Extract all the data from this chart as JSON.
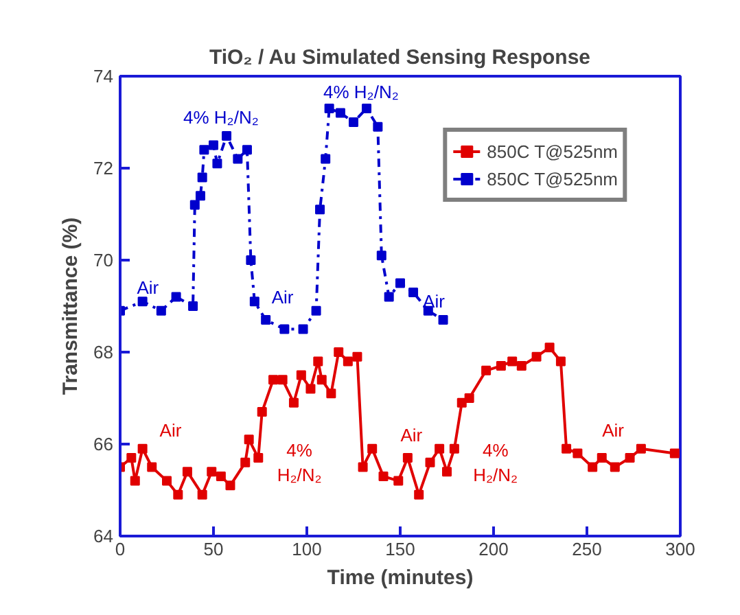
{
  "chart_data": {
    "type": "line",
    "title": "TiO₂ / Au Simulated Sensing Response",
    "xlabel": "Time (minutes)",
    "ylabel": "Transmittance (%)",
    "xlim": [
      0,
      300
    ],
    "xticks": [
      0,
      50,
      100,
      150,
      200,
      250,
      300
    ],
    "ylim": [
      64,
      74
    ],
    "yticks": [
      64,
      66,
      68,
      70,
      72,
      74
    ],
    "grid": false,
    "legend": "top right",
    "marker": "square",
    "series": [
      {
        "name": "850C T@525nm",
        "color": "#e00000",
        "line_style": "solid",
        "x": [
          0,
          6,
          8,
          12,
          17,
          25,
          31,
          36,
          44,
          49,
          54,
          59,
          67,
          69,
          74,
          76,
          82,
          87,
          93,
          97,
          102,
          106,
          108,
          113,
          117,
          122,
          127,
          130,
          135,
          141,
          149,
          154,
          160,
          166,
          171,
          175,
          179,
          183,
          187,
          196,
          204,
          210,
          215,
          223,
          230,
          236,
          239,
          245,
          253,
          258,
          265,
          273,
          279,
          297
        ],
        "values": [
          65.5,
          65.7,
          65.2,
          65.9,
          65.5,
          65.2,
          64.9,
          65.4,
          64.9,
          65.4,
          65.3,
          65.1,
          65.6,
          66.1,
          65.7,
          66.7,
          67.4,
          67.4,
          66.9,
          67.5,
          67.2,
          67.8,
          67.4,
          67.1,
          68.0,
          67.8,
          67.9,
          65.5,
          65.9,
          65.3,
          65.2,
          65.7,
          64.9,
          65.6,
          65.9,
          65.4,
          65.9,
          66.9,
          67.0,
          67.6,
          67.7,
          67.8,
          67.7,
          67.9,
          68.1,
          67.8,
          65.9,
          65.8,
          65.5,
          65.7,
          65.5,
          65.7,
          65.9,
          65.8
        ]
      },
      {
        "name": "850C T@525nm",
        "color": "#0000cc",
        "line_style": "dashed",
        "x": [
          0,
          12,
          22,
          30,
          39,
          40,
          43,
          44,
          45,
          50,
          52,
          57,
          63,
          68,
          70,
          72,
          78,
          88,
          98,
          105,
          107,
          110,
          112,
          118,
          125,
          132,
          138,
          140,
          144,
          150,
          157,
          165,
          173
        ],
        "values": [
          68.9,
          69.1,
          68.9,
          69.2,
          69.0,
          71.2,
          71.4,
          71.8,
          72.4,
          72.5,
          72.1,
          72.7,
          72.2,
          72.4,
          70.0,
          69.1,
          68.7,
          68.5,
          68.5,
          68.9,
          71.1,
          72.2,
          73.3,
          73.2,
          73.0,
          73.3,
          72.9,
          70.1,
          69.2,
          69.5,
          69.3,
          68.9,
          68.7
        ]
      }
    ],
    "annotations": [
      "Air",
      "4%\nH₂/N₂",
      "Air",
      "4%\nH₂/N₂",
      "Air",
      "Air",
      "4% H₂/N₂",
      "Air",
      "4% H₂/N₂",
      "Air"
    ]
  }
}
